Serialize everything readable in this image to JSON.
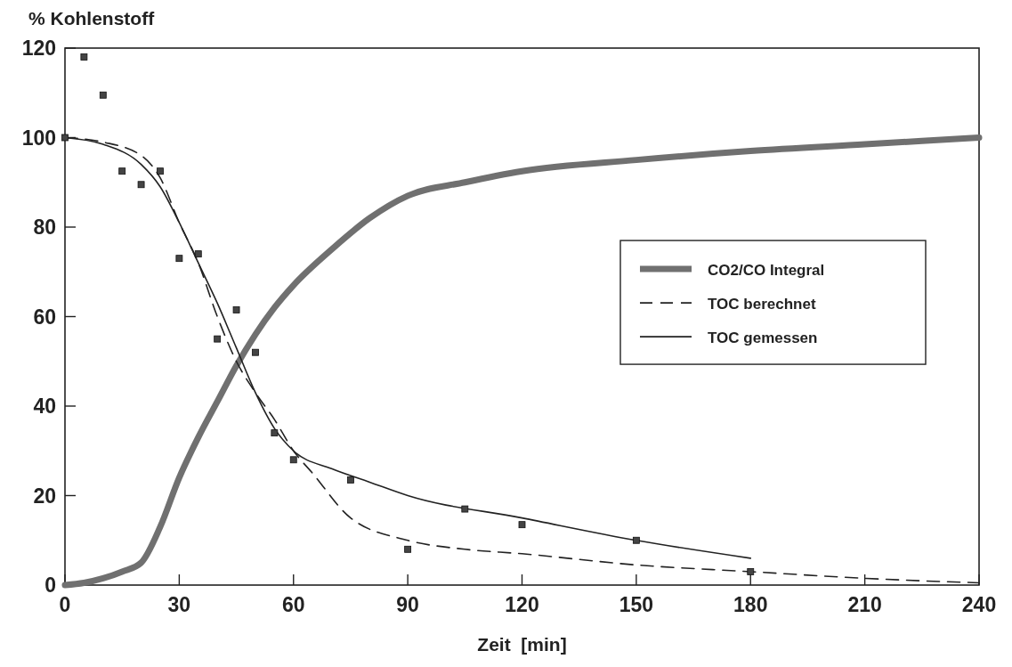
{
  "chart_data": {
    "type": "line",
    "xlabel": "Zeit  [min]",
    "ylabel": "% Kohlenstoff",
    "xlim": [
      0,
      240
    ],
    "xticks": [
      0,
      30,
      60,
      90,
      120,
      150,
      180,
      210,
      240
    ],
    "ylim": [
      0,
      120
    ],
    "yticks": [
      0,
      20,
      40,
      60,
      80,
      100,
      120
    ],
    "grid": false,
    "legend": "right",
    "series": [
      {
        "name": "CO2/CO Integral",
        "color": "#707070",
        "line_style": "solid",
        "x": [
          0,
          5,
          10,
          15,
          20,
          25,
          30,
          35,
          40,
          45,
          50,
          55,
          60,
          70,
          80,
          90,
          105,
          120,
          150,
          180,
          210,
          240
        ],
        "values": [
          0,
          0.5,
          1.5,
          3,
          5,
          13,
          24,
          33,
          41,
          49,
          56,
          62,
          67,
          75,
          82,
          87,
          90,
          92.5,
          95,
          97,
          98.5,
          100
        ]
      },
      {
        "name": "TOC berechnet",
        "color": "#222222",
        "line_style": "dashed",
        "x": [
          0,
          10,
          20,
          25,
          30,
          35,
          40,
          45,
          50,
          55,
          60,
          65,
          75,
          90,
          105,
          120,
          150,
          180,
          210,
          240
        ],
        "values": [
          100,
          99,
          96,
          91,
          81,
          72,
          60,
          50,
          43,
          37,
          30,
          25,
          15,
          10,
          8,
          7,
          4.5,
          3,
          1.5,
          0.5
        ]
      },
      {
        "name": "TOC gemessen",
        "color": "#222222",
        "line_style": "solid",
        "x": [
          0,
          10,
          20,
          25,
          30,
          35,
          40,
          45,
          50,
          55,
          60,
          70,
          80,
          90,
          120,
          150,
          180
        ],
        "values": [
          100,
          98.5,
          94,
          89,
          81,
          72,
          63,
          53,
          43,
          35,
          30,
          26,
          23,
          20,
          15,
          10,
          6
        ]
      },
      {
        "type": "scatter",
        "color": "#444444",
        "marker": "square",
        "x": [
          0,
          5,
          10,
          15,
          20,
          25,
          30,
          35,
          40,
          45,
          50,
          55,
          60,
          75,
          90,
          105,
          120,
          150,
          180
        ],
        "values": [
          100,
          118,
          109.5,
          92.5,
          89.5,
          92.5,
          73,
          74,
          55,
          61.5,
          52,
          34,
          28,
          23.5,
          8,
          17,
          13.5,
          10,
          3
        ]
      }
    ]
  }
}
